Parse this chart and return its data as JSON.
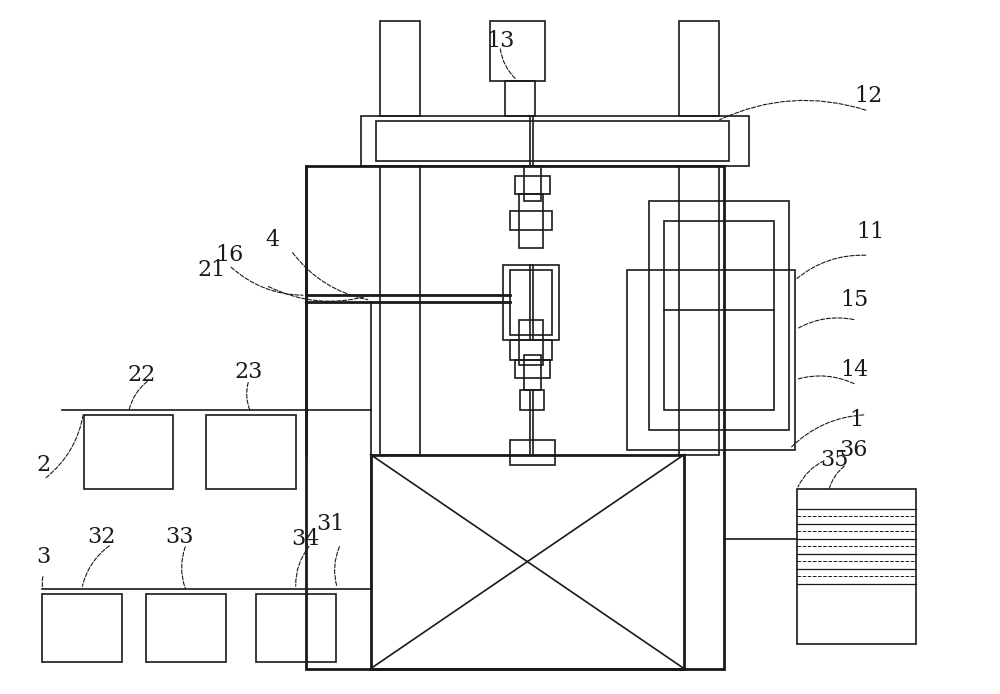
{
  "bg_color": "#ffffff",
  "line_color": "#1a1a1a",
  "lw": 1.2,
  "tlw": 2.0,
  "fig_width": 10.0,
  "fig_height": 6.94
}
